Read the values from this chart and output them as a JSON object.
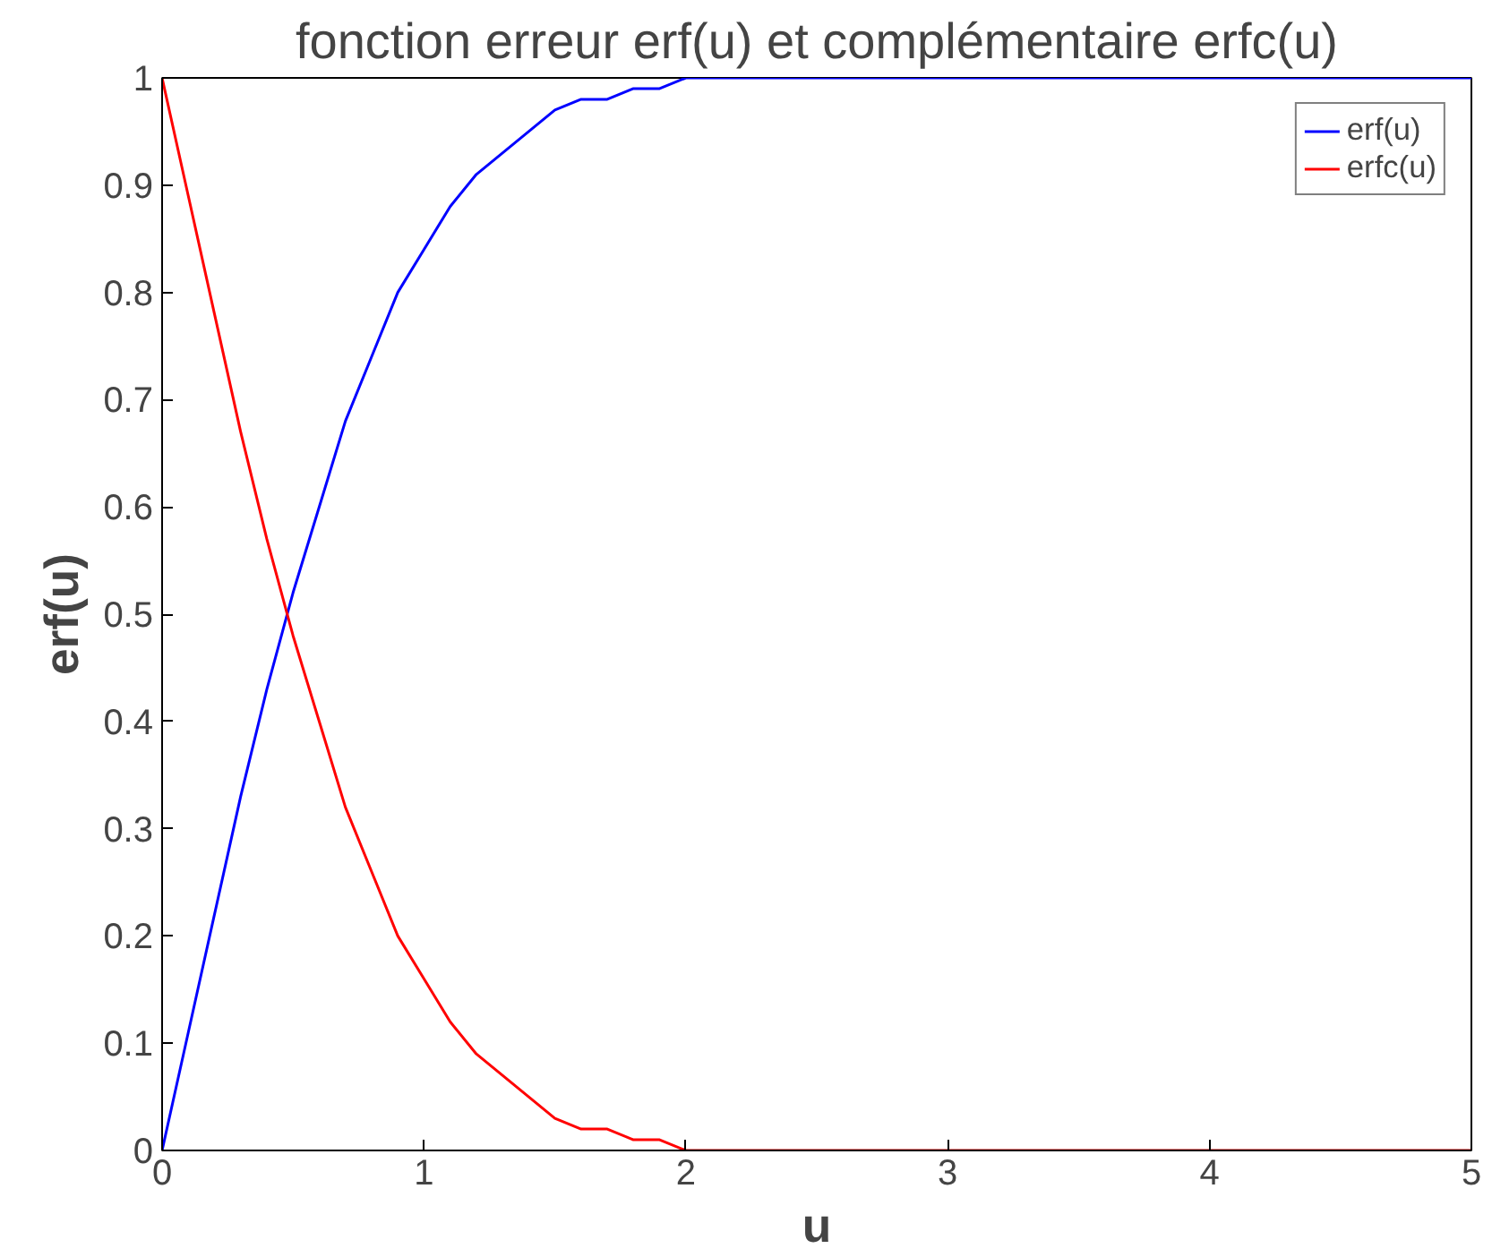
{
  "chart_data": {
    "type": "line",
    "title": "fonction erreur erf(u) et complémentaire erfc(u)",
    "xlabel": "u",
    "ylabel": "erf(u)",
    "x": [
      0,
      0.1,
      0.2,
      0.3,
      0.4,
      0.5,
      0.6,
      0.7,
      0.8,
      0.9,
      1.0,
      1.1,
      1.2,
      1.3,
      1.4,
      1.5,
      1.6,
      1.7,
      1.8,
      1.9,
      2.0,
      2.1,
      2.2,
      2.5,
      3,
      4,
      5
    ],
    "series": [
      {
        "name": "erf(u)",
        "color": "#0000ff",
        "values": [
          0,
          0.11,
          0.22,
          0.33,
          0.43,
          0.52,
          0.6,
          0.68,
          0.74,
          0.8,
          0.84,
          0.88,
          0.91,
          0.93,
          0.95,
          0.97,
          0.98,
          0.98,
          0.99,
          0.99,
          1.0,
          1.0,
          1.0,
          1.0,
          1.0,
          1.0,
          1.0
        ]
      },
      {
        "name": "erfc(u)",
        "color": "#ff0000",
        "values": [
          1,
          0.89,
          0.78,
          0.67,
          0.57,
          0.48,
          0.4,
          0.32,
          0.26,
          0.2,
          0.16,
          0.12,
          0.09,
          0.07,
          0.05,
          0.03,
          0.02,
          0.02,
          0.01,
          0.01,
          0,
          0,
          0,
          0,
          0,
          0,
          0
        ]
      }
    ],
    "xlim": [
      0,
      5
    ],
    "xticks": [
      0,
      1,
      2,
      3,
      4,
      5
    ],
    "ylim": [
      0,
      1
    ],
    "yticks": [
      0,
      0.1,
      0.2,
      0.3,
      0.4,
      0.5,
      0.6,
      0.7,
      0.8,
      0.9,
      1
    ],
    "legend": "top right",
    "grid": false,
    "line_style": "solid"
  }
}
